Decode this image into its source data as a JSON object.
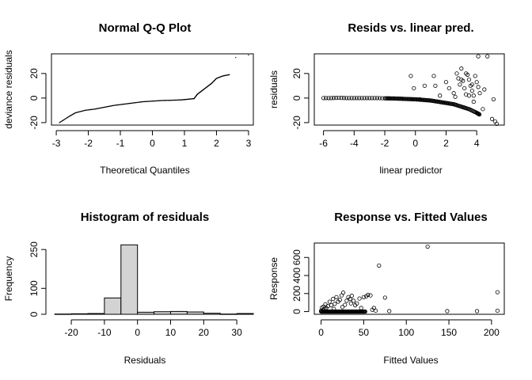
{
  "chart_data": [
    {
      "type": "scatter",
      "title": "Normal Q-Q Plot",
      "xlabel": "Theoretical Quantiles",
      "ylabel": "deviance residuals",
      "xlim": [
        -3.15,
        3.15
      ],
      "ylim": [
        -22,
        36
      ],
      "xticks": [
        -3,
        -2,
        -1,
        0,
        1,
        2,
        3
      ],
      "yticks": [
        -20,
        0,
        20
      ],
      "marker": "dot",
      "curve": [
        [
          -2.9,
          -20
        ],
        [
          -2.6,
          -15
        ],
        [
          -2.4,
          -12
        ],
        [
          -2.1,
          -10
        ],
        [
          -1.8,
          -9
        ],
        [
          -1.5,
          -7.5
        ],
        [
          -1.2,
          -6
        ],
        [
          -0.9,
          -5
        ],
        [
          -0.6,
          -4
        ],
        [
          -0.3,
          -3
        ],
        [
          0,
          -2.5
        ],
        [
          0.3,
          -2
        ],
        [
          0.6,
          -1.8
        ],
        [
          0.9,
          -1.5
        ],
        [
          1.1,
          -1
        ],
        [
          1.3,
          -0.5
        ],
        [
          1.4,
          3
        ],
        [
          1.55,
          6
        ],
        [
          1.7,
          9
        ],
        [
          1.85,
          12
        ],
        [
          2.0,
          16
        ],
        [
          2.2,
          18
        ],
        [
          2.4,
          19
        ],
        [
          2.6,
          33
        ],
        [
          3.0,
          35
        ]
      ]
    },
    {
      "type": "scatter",
      "title": "Resids vs. linear pred.",
      "xlabel": "linear predictor",
      "ylabel": "residuals",
      "xlim": [
        -6.6,
        5.8
      ],
      "ylim": [
        -22,
        36
      ],
      "xticks": [
        -6,
        -4,
        -2,
        0,
        2,
        4
      ],
      "yticks": [
        -20,
        0,
        20
      ],
      "marker": "circle",
      "curve_points": [
        [
          -6,
          0
        ],
        [
          -5.5,
          0
        ],
        [
          -5,
          0.2
        ],
        [
          -4.5,
          0
        ],
        [
          -4,
          0
        ],
        [
          -3.5,
          0
        ],
        [
          -3,
          0
        ],
        [
          -2.5,
          0
        ],
        [
          -2,
          -0.2
        ],
        [
          -1.5,
          -0.3
        ],
        [
          -1,
          -0.5
        ],
        [
          -0.5,
          -0.8
        ],
        [
          0,
          -1
        ],
        [
          0.5,
          -1.5
        ],
        [
          1,
          -2
        ],
        [
          1.5,
          -3
        ],
        [
          2,
          -4
        ],
        [
          2.5,
          -5
        ],
        [
          3,
          -7
        ],
        [
          3.5,
          -9
        ],
        [
          4,
          -12
        ],
        [
          4.2,
          -13.5
        ]
      ],
      "scatter_points": [
        [
          -0.3,
          18
        ],
        [
          -0.1,
          8
        ],
        [
          0.3,
          -1
        ],
        [
          0.6,
          10
        ],
        [
          1.2,
          18
        ],
        [
          1.3,
          10
        ],
        [
          1.6,
          2
        ],
        [
          2.0,
          13
        ],
        [
          2.2,
          8
        ],
        [
          2.5,
          4
        ],
        [
          2.6,
          1
        ],
        [
          2.7,
          20
        ],
        [
          2.8,
          16
        ],
        [
          2.9,
          11
        ],
        [
          3.0,
          24
        ],
        [
          3.1,
          14
        ],
        [
          3.2,
          8
        ],
        [
          3.3,
          3
        ],
        [
          3.4,
          19
        ],
        [
          3.5,
          15
        ],
        [
          3.6,
          10
        ],
        [
          3.7,
          6
        ],
        [
          3.8,
          2
        ],
        [
          3.9,
          18
        ],
        [
          4.0,
          13
        ],
        [
          4.1,
          9
        ],
        [
          4.2,
          4
        ],
        [
          4.1,
          34
        ],
        [
          4.7,
          34
        ],
        [
          3.7,
          11
        ],
        [
          3.5,
          2
        ],
        [
          4.5,
          7
        ],
        [
          3.0,
          15
        ],
        [
          3.3,
          20
        ],
        [
          5.1,
          -1
        ],
        [
          5.0,
          -17
        ],
        [
          5.2,
          -19
        ],
        [
          5.3,
          -21
        ],
        [
          4.4,
          -9
        ],
        [
          3.8,
          -3
        ]
      ]
    },
    {
      "type": "bar",
      "title": "Histogram of residuals",
      "xlabel": "Residuals",
      "ylabel": "Frequency",
      "xlim": [
        -26,
        35
      ],
      "ylim": [
        0,
        275
      ],
      "xticks": [
        -20,
        -10,
        0,
        10,
        20,
        30
      ],
      "yticks": [
        0,
        100,
        250
      ],
      "bins": [
        [
          -25,
          -20,
          1
        ],
        [
          -20,
          -15,
          2
        ],
        [
          -15,
          -10,
          3
        ],
        [
          -10,
          -5,
          63
        ],
        [
          -5,
          0,
          268
        ],
        [
          0,
          5,
          8
        ],
        [
          5,
          10,
          10
        ],
        [
          10,
          15,
          11
        ],
        [
          15,
          20,
          9
        ],
        [
          20,
          25,
          4
        ],
        [
          25,
          30,
          1
        ],
        [
          30,
          35,
          3
        ]
      ]
    },
    {
      "type": "scatter",
      "title": "Response vs. Fitted Values",
      "xlabel": "Fitted Values",
      "ylabel": "Response",
      "xlim": [
        -8,
        215
      ],
      "ylim": [
        -30,
        760
      ],
      "xticks": [
        0,
        50,
        100,
        150,
        200
      ],
      "yticks": [
        0,
        200,
        400,
        600
      ],
      "marker": "circle",
      "points": [
        [
          125,
          720
        ],
        [
          68,
          510
        ],
        [
          207,
          215
        ],
        [
          207,
          10
        ],
        [
          183,
          5
        ],
        [
          148,
          5
        ],
        [
          80,
          5
        ],
        [
          75,
          155
        ],
        [
          58,
          180
        ],
        [
          55,
          185
        ],
        [
          53,
          170
        ],
        [
          50,
          160
        ],
        [
          45,
          145
        ],
        [
          42,
          90
        ],
        [
          40,
          70
        ],
        [
          38,
          120
        ],
        [
          36,
          175
        ],
        [
          34,
          140
        ],
        [
          32,
          160
        ],
        [
          30,
          120
        ],
        [
          28,
          75
        ],
        [
          26,
          210
        ],
        [
          24,
          180
        ],
        [
          22,
          130
        ],
        [
          20,
          110
        ],
        [
          18,
          160
        ],
        [
          16,
          85
        ],
        [
          14,
          140
        ],
        [
          12,
          70
        ],
        [
          10,
          110
        ],
        [
          8,
          60
        ],
        [
          6,
          40
        ],
        [
          5,
          80
        ],
        [
          4,
          30
        ],
        [
          3,
          55
        ],
        [
          2,
          20
        ],
        [
          1,
          45
        ],
        [
          0,
          10
        ],
        [
          60,
          20
        ],
        [
          62,
          40
        ],
        [
          64,
          10
        ],
        [
          35,
          90
        ],
        [
          47,
          40
        ],
        [
          25,
          50
        ],
        [
          15,
          30
        ]
      ],
      "floor": {
        "x_start": 0,
        "x_end": 52,
        "y": 0
      }
    }
  ]
}
